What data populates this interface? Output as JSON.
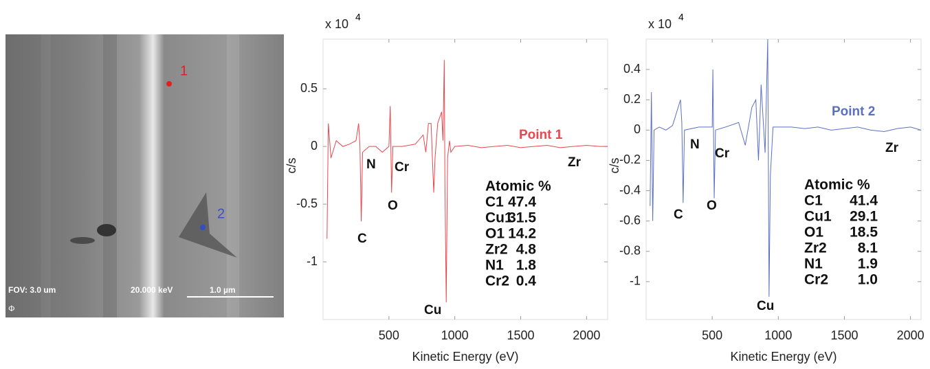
{
  "image": {
    "fov": "FOV: 3.0 um",
    "energy": "20.000 keV",
    "scale": "1.0 µm",
    "logo": "Φ",
    "points": [
      "1",
      "2"
    ]
  },
  "chart_data": [
    {
      "type": "line",
      "y_scale_label": "x 10",
      "y_scale_exponent": "4",
      "ylabel": "c/s",
      "xlabel": "Kinetic Energy (eV)",
      "xlim": [
        0,
        2160
      ],
      "ylim": [
        -1.5,
        0.93
      ],
      "xticks": [
        500,
        1000,
        1500,
        2000
      ],
      "yticks": [
        0.5,
        0,
        -0.5,
        -1
      ],
      "x": [
        30,
        40,
        60,
        100,
        150,
        200,
        250,
        270,
        280,
        290,
        300,
        350,
        400,
        450,
        500,
        510,
        520,
        530,
        600,
        700,
        760,
        780,
        800,
        820,
        840,
        850,
        870,
        900,
        910,
        920,
        925,
        935,
        945,
        960,
        970,
        1000,
        1100,
        1200,
        1300,
        1400,
        1500,
        1600,
        1700,
        1800,
        1900,
        2000,
        2100,
        2160
      ],
      "series": [
        {
          "name": "Point 1",
          "color": "#e8474f",
          "values": [
            -0.8,
            0.2,
            -0.1,
            0.05,
            0,
            0.02,
            0.05,
            0.2,
            0,
            -0.65,
            -0.05,
            0,
            0,
            -0.05,
            0,
            0.35,
            -0.4,
            0,
            0,
            0.02,
            0.1,
            -0.05,
            0.2,
            0.2,
            -0.4,
            -0.1,
            0.2,
            0.3,
            0.05,
            0.75,
            -0.3,
            -1.35,
            -0.1,
            0.05,
            -0.05,
            0,
            0.01,
            -0.01,
            0,
            0.01,
            -0.01,
            0,
            0.01,
            -0.01,
            0,
            0.01,
            0,
            0
          ]
        }
      ],
      "annotations": [
        "C",
        "N",
        "O",
        "Cr",
        "Cu",
        "Zr"
      ],
      "table": {
        "title": "Atomic %",
        "rows": [
          [
            "C1",
            "47.4"
          ],
          [
            "Cu1",
            "31.5"
          ],
          [
            "O1",
            "14.2"
          ],
          [
            "Zr2",
            "4.8"
          ],
          [
            "N1",
            "1.8"
          ],
          [
            "Cr2",
            "0.4"
          ]
        ]
      }
    },
    {
      "type": "line",
      "y_scale_label": "x 10",
      "y_scale_exponent": "4",
      "ylabel": "c/s",
      "xlabel": "Kinetic Energy (eV)",
      "xlim": [
        0,
        2080
      ],
      "ylim": [
        -1.25,
        0.6
      ],
      "xticks": [
        500,
        1000,
        1500,
        2000
      ],
      "yticks": [
        0.4,
        0.2,
        0,
        -0.2,
        -0.4,
        -0.6,
        -0.8,
        -1
      ],
      "x": [
        30,
        40,
        50,
        60,
        100,
        150,
        200,
        260,
        270,
        280,
        290,
        400,
        500,
        505,
        515,
        525,
        600,
        700,
        750,
        800,
        830,
        850,
        870,
        900,
        920,
        930,
        940,
        960,
        1100,
        1200,
        1300,
        1400,
        1500,
        1600,
        1700,
        1800,
        1900,
        2000,
        2080
      ],
      "series": [
        {
          "name": "Point 2",
          "color": "#5a70c2",
          "values": [
            -0.5,
            0.25,
            -0.6,
            0,
            0.02,
            0,
            0.03,
            0.2,
            0.05,
            -0.48,
            0,
            0.02,
            0.02,
            0.4,
            -0.45,
            0,
            0.02,
            0.05,
            -0.1,
            0.15,
            0.2,
            -0.2,
            0.3,
            -0.15,
            0.6,
            -1.1,
            -0.3,
            0.02,
            0.02,
            0.01,
            0.02,
            0,
            0.01,
            0.02,
            0,
            -0.01,
            0.01,
            0.02,
            0
          ]
        }
      ],
      "annotations": [
        "C",
        "N",
        "O",
        "Cr",
        "Cu",
        "Zr"
      ],
      "table": {
        "title": "Atomic %",
        "rows": [
          [
            "C1",
            "41.4"
          ],
          [
            "Cu1",
            "29.1"
          ],
          [
            "O1",
            "18.5"
          ],
          [
            "Zr2",
            "8.1"
          ],
          [
            "N1",
            "1.9"
          ],
          [
            "Cr2",
            "1.0"
          ]
        ]
      }
    }
  ]
}
